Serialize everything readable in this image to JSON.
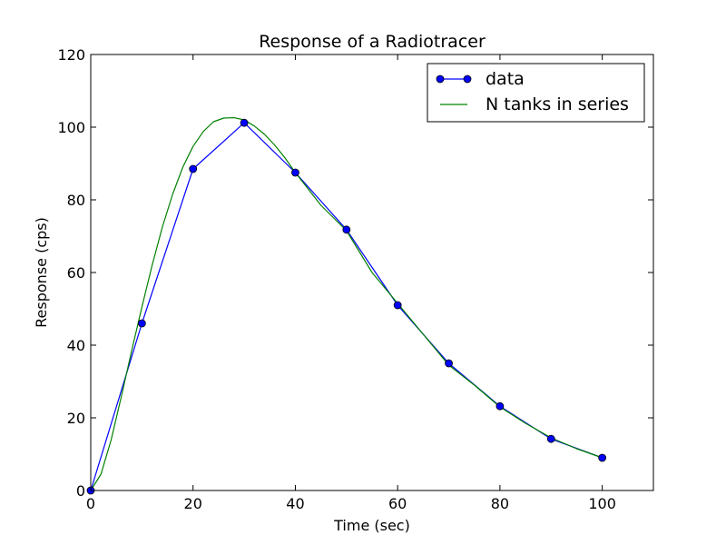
{
  "chart_data": {
    "type": "line",
    "title": "Response of a Radiotracer",
    "xlabel": "Time (sec)",
    "ylabel": "Response (cps)",
    "xlim": [
      0,
      110
    ],
    "ylim": [
      0,
      120
    ],
    "xticks": [
      0,
      20,
      40,
      60,
      80,
      100
    ],
    "yticks": [
      0,
      20,
      40,
      60,
      80,
      100,
      120
    ],
    "grid": false,
    "legend_position": "top-right",
    "series": [
      {
        "name": "data",
        "style": "line-markers",
        "color": "#0000ff",
        "x": [
          0,
          10,
          20,
          30,
          40,
          50,
          60,
          70,
          80,
          90,
          100
        ],
        "y": [
          0,
          46,
          88.5,
          101.2,
          87.5,
          71.8,
          51,
          35,
          23.2,
          14.2,
          9
        ]
      },
      {
        "name": "N tanks in series",
        "style": "line",
        "color": "#008000",
        "x": [
          0,
          2,
          4,
          6,
          8,
          10,
          12,
          14,
          16,
          18,
          20,
          22,
          24,
          26,
          28,
          30,
          32,
          34,
          36,
          38,
          40,
          45,
          50,
          55,
          60,
          65,
          70,
          75,
          80,
          85,
          90,
          95,
          100
        ],
        "y": [
          0,
          4.5,
          14,
          26,
          38.5,
          50.5,
          62,
          72.5,
          81.5,
          89,
          94.7,
          98.8,
          101.5,
          102.5,
          102.6,
          102,
          100.3,
          98,
          95,
          91.5,
          87.5,
          78.5,
          71.5,
          60,
          51.5,
          43,
          34.5,
          29,
          23,
          18.5,
          14.5,
          11.5,
          9
        ]
      }
    ]
  }
}
